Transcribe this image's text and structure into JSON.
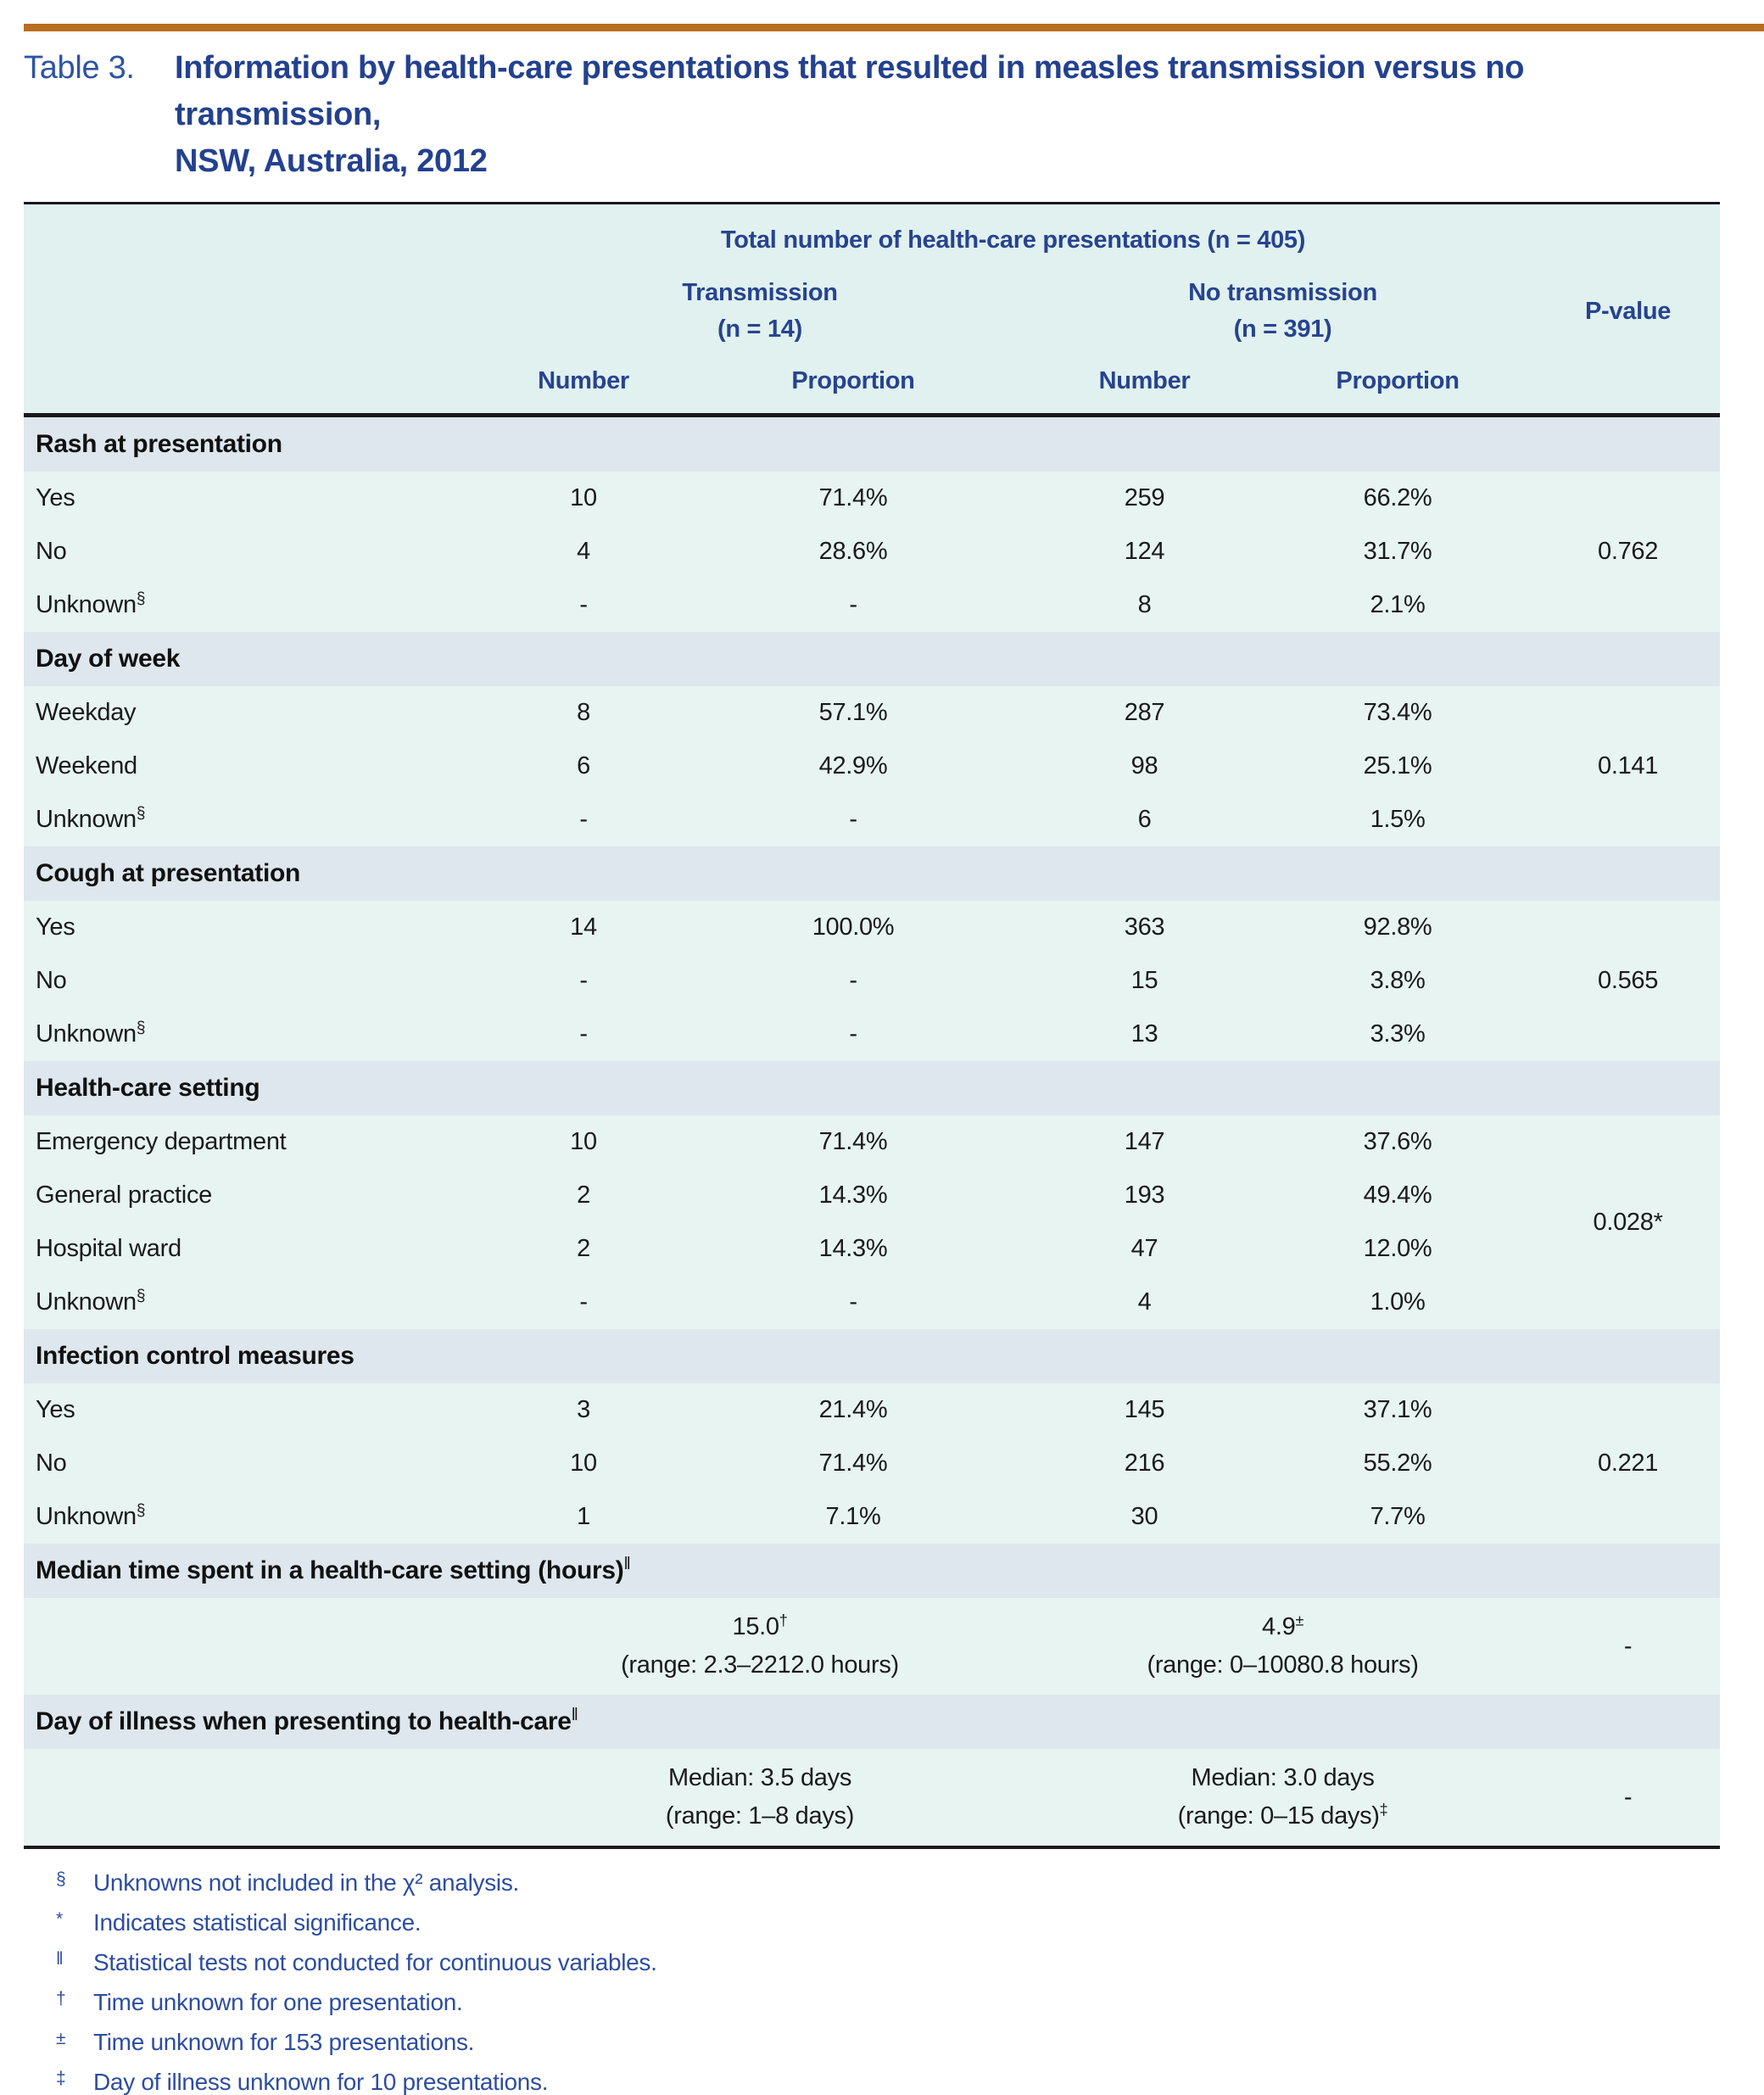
{
  "table_tag": "Table 3.",
  "table_title_line1": "Information by health-care presentations that resulted in measles transmission versus no transmission,",
  "table_title_line2": "NSW, Australia, 2012",
  "colors": {
    "accent_bar": "#b86e1e",
    "header_bg": "#e0f1ef",
    "section_band_bg": "#dde7ed",
    "data_row_bg": "#e7f4f1",
    "header_text": "#27438f",
    "title_text": "#23418f",
    "footnote_text": "#2d4da0"
  },
  "header": {
    "total_label": "Total number of health-care presentations (n = 405)",
    "transmission_label": "Transmission",
    "transmission_n": "(n = 14)",
    "no_transmission_label": "No transmission",
    "no_transmission_n": "(n = 391)",
    "p_value_label": "P-value",
    "subcolumns": [
      "Number",
      "Proportion",
      "Number",
      "Proportion"
    ]
  },
  "sections": [
    {
      "title": "Rash at presentation",
      "p_value": "0.762",
      "rows": [
        {
          "label": "Yes",
          "cells": [
            "10",
            "71.4%",
            "259",
            "66.2%"
          ]
        },
        {
          "label": "No",
          "cells": [
            "4",
            "28.6%",
            "124",
            "31.7%"
          ]
        },
        {
          "label": "Unknown",
          "label_sup": "§",
          "cells": [
            "-",
            "-",
            "8",
            "2.1%"
          ]
        }
      ]
    },
    {
      "title": "Day of week",
      "p_value": "0.141",
      "rows": [
        {
          "label": "Weekday",
          "cells": [
            "8",
            "57.1%",
            "287",
            "73.4%"
          ]
        },
        {
          "label": "Weekend",
          "cells": [
            "6",
            "42.9%",
            "98",
            "25.1%"
          ]
        },
        {
          "label": "Unknown",
          "label_sup": "§",
          "cells": [
            "-",
            "-",
            "6",
            "1.5%"
          ]
        }
      ]
    },
    {
      "title": "Cough at presentation",
      "p_value": "0.565",
      "rows": [
        {
          "label": "Yes",
          "cells": [
            "14",
            "100.0%",
            "363",
            "92.8%"
          ]
        },
        {
          "label": "No",
          "cells": [
            "-",
            "-",
            "15",
            "3.8%"
          ]
        },
        {
          "label": "Unknown",
          "label_sup": "§",
          "cells": [
            "-",
            "-",
            "13",
            "3.3%"
          ]
        }
      ]
    },
    {
      "title": "Health-care setting",
      "p_value": "0.028*",
      "rows": [
        {
          "label": "Emergency department",
          "cells": [
            "10",
            "71.4%",
            "147",
            "37.6%"
          ]
        },
        {
          "label": "General practice",
          "cells": [
            "2",
            "14.3%",
            "193",
            "49.4%"
          ]
        },
        {
          "label": "Hospital ward",
          "cells": [
            "2",
            "14.3%",
            "47",
            "12.0%"
          ]
        },
        {
          "label": "Unknown",
          "label_sup": "§",
          "cells": [
            "-",
            "-",
            "4",
            "1.0%"
          ]
        }
      ]
    },
    {
      "title": "Infection control measures",
      "p_value": "0.221",
      "rows": [
        {
          "label": "Yes",
          "cells": [
            "3",
            "21.4%",
            "145",
            "37.1%"
          ]
        },
        {
          "label": "No",
          "cells": [
            "10",
            "71.4%",
            "216",
            "55.2%"
          ]
        },
        {
          "label": "Unknown",
          "label_sup": "§",
          "cells": [
            "1",
            "7.1%",
            "30",
            "7.7%"
          ]
        }
      ]
    }
  ],
  "summary_sections": [
    {
      "title": "Median time spent in a health-care setting (hours)",
      "title_sup": "‖",
      "transmission": {
        "line1": "15.0",
        "line1_sup": "†",
        "line2": "(range: 2.3–2212.0 hours)",
        "line2_sup": ""
      },
      "no_transmission": {
        "line1": "4.9",
        "line1_sup": "±",
        "line2": "(range: 0–10080.8 hours)",
        "line2_sup": ""
      },
      "p_value": "-"
    },
    {
      "title": "Day of illness when presenting to health-care",
      "title_sup": "‖",
      "transmission": {
        "line1": "Median: 3.5 days",
        "line1_sup": "",
        "line2": "(range: 1–8 days)",
        "line2_sup": ""
      },
      "no_transmission": {
        "line1": "Median: 3.0 days",
        "line1_sup": "",
        "line2": "(range: 0–15 days)",
        "line2_sup": "‡"
      },
      "p_value": "-"
    }
  ],
  "footnotes": [
    {
      "symbol": "§",
      "text": "Unknowns not included in the χ² analysis."
    },
    {
      "symbol": "*",
      "text": "Indicates statistical significance."
    },
    {
      "symbol": "‖",
      "text": "Statistical tests not conducted for continuous variables."
    },
    {
      "symbol": "†",
      "text": "Time unknown for one presentation."
    },
    {
      "symbol": "±",
      "text": "Time unknown for 153 presentations."
    },
    {
      "symbol": "‡",
      "text": "Day of illness unknown for 10 presentations."
    }
  ]
}
